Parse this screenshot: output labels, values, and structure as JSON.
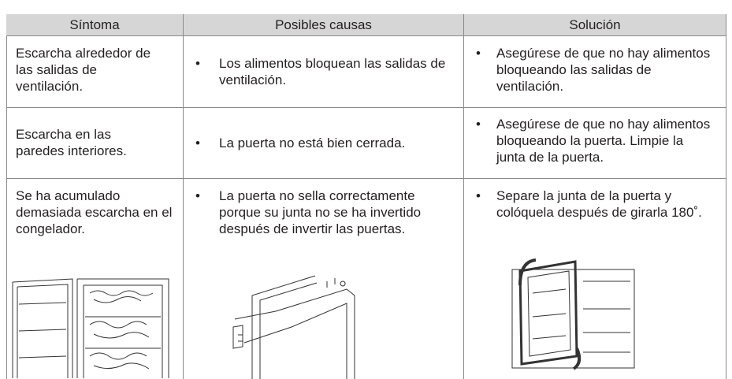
{
  "table": {
    "header": [
      "Síntoma",
      "Posibles causas",
      "Solución"
    ],
    "rows": [
      [
        "Escarcha alrededor de las salidas de ventilación.",
        "Los alimentos bloquean las salidas de ventilación.",
        "Asegúrese de que no hay alimentos bloqueando las salidas de ventilación."
      ],
      [
        "Escarcha en las paredes interiores.",
        "La puerta no está bien cerrada.",
        "Asegúrese de que no hay alimentos bloqueando la puerta. Limpie la junta de la puerta."
      ],
      [
        "Se ha acumulado demasiada escarcha en el congelador.",
        "La puerta no sella correctamente porque su junta no se ha invertido después de invertir las puertas.",
        "Separe la junta de la puerta y colóquela después de girarla 180˚."
      ]
    ]
  }
}
